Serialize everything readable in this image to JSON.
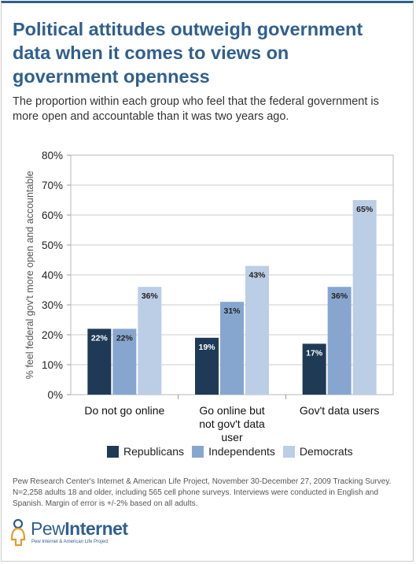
{
  "title": "Political attitudes outweigh government data when it comes to views on government openness",
  "subtitle": "The proportion within each group who feel that the federal government is more open and accountable than it was two years ago.",
  "chart_data": {
    "type": "bar",
    "title": "Political attitudes outweigh government data when it comes to views on government openness",
    "ylabel": "% feel federal gov't more open and accountable",
    "xlabel": "",
    "ylim": [
      0,
      80
    ],
    "yticks": [
      0,
      10,
      20,
      30,
      40,
      50,
      60,
      70,
      80
    ],
    "ytick_labels": [
      "0%",
      "10%",
      "20%",
      "30%",
      "40%",
      "50%",
      "60%",
      "70%",
      "80%"
    ],
    "categories": [
      [
        "Do not go online"
      ],
      [
        "Go online but",
        "not gov't data",
        "user"
      ],
      [
        "Gov't data users"
      ]
    ],
    "category_names": [
      "Do not go online",
      "Go online but not gov't data user",
      "Gov't data users"
    ],
    "series": [
      {
        "name": "Republicans",
        "color": "#1f3a55",
        "values": [
          22,
          19,
          17
        ],
        "labels": [
          "22%",
          "19%",
          "17%"
        ]
      },
      {
        "name": "Independents",
        "color": "#87a6cf",
        "values": [
          22,
          31,
          36
        ],
        "labels": [
          "22%",
          "31%",
          "36%"
        ]
      },
      {
        "name": "Democrats",
        "color": "#bccde6",
        "values": [
          36,
          43,
          65
        ],
        "labels": [
          "36%",
          "43%",
          "65%"
        ]
      }
    ],
    "grid": true,
    "legend": "bottom"
  },
  "footnote": "Pew Research Center's Internet & American Life Project, November 30-December 27, 2009 Tracking Survey. N=2,258 adults 18 and older, including 565 cell phone surveys. Interviews were conducted in English and Spanish. Margin of error is +/-2% based on all adults.",
  "logo": {
    "brand_a": "Pew",
    "brand_b": "Internet",
    "tagline": "Pew Internet & American Life Project",
    "icon": "pew-person-icon"
  }
}
